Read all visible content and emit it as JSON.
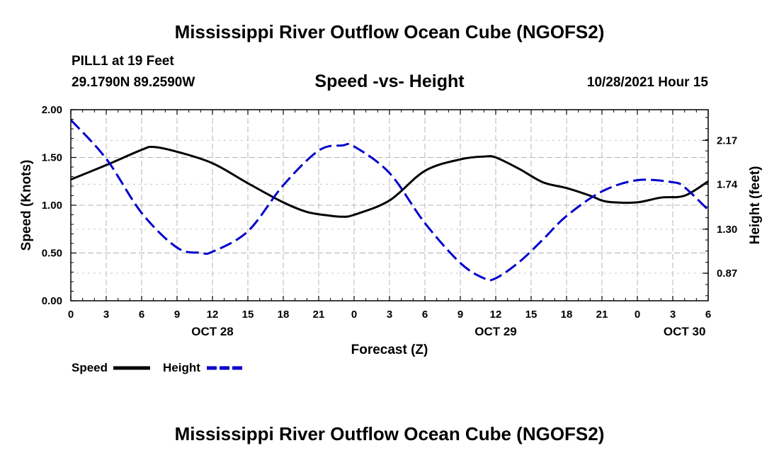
{
  "page": {
    "title": "Mississippi River Outflow Ocean Cube (NGOFS2)",
    "footer_title": "Mississippi River Outflow Ocean Cube (NGOFS2)",
    "station": "PILL1 at 19 Feet",
    "coords": "29.1790N  89.2590W",
    "subtitle": "Speed -vs- Height",
    "datetime": "10/28/2021 Hour 15"
  },
  "chart_data": {
    "type": "line",
    "title": "Speed -vs- Height",
    "xlabel": "Forecast (Z)",
    "ylabel": "Speed (Knots)",
    "y2label": "Height (feet)",
    "x_ticks": [
      "0",
      "3",
      "6",
      "9",
      "12",
      "15",
      "18",
      "21",
      "0",
      "3",
      "6",
      "9",
      "12",
      "15",
      "18",
      "21",
      "0",
      "3",
      "6"
    ],
    "date_labels": [
      {
        "label": "OCT 28",
        "x": 12
      },
      {
        "label": "OCT 29",
        "x": 36
      },
      {
        "label": "OCT 30",
        "x": 52
      }
    ],
    "xlim": [
      0,
      54
    ],
    "ylim": [
      0,
      2.0
    ],
    "y_ticks": [
      "0.00",
      "0.50",
      "1.00",
      "1.50",
      "2.00"
    ],
    "y2lim": [
      0.6,
      2.47
    ],
    "y2_ticks": [
      "0.87",
      "1.30",
      "1.74",
      "2.17"
    ],
    "grid": true,
    "legend": [
      {
        "name": "Speed",
        "color": "#000000",
        "style": "solid"
      },
      {
        "name": "Height",
        "color": "#0000cc",
        "style": "dashed"
      }
    ],
    "series": [
      {
        "name": "Speed",
        "axis": "left",
        "color": "#000000",
        "x": [
          0,
          3,
          6,
          7,
          9,
          12,
          15,
          18,
          20,
          22,
          23,
          24,
          27,
          30,
          33,
          35,
          36,
          38,
          40,
          42,
          44,
          45,
          46,
          48,
          50,
          52,
          54
        ],
        "values": [
          1.27,
          1.42,
          1.58,
          1.61,
          1.56,
          1.44,
          1.23,
          1.03,
          0.93,
          0.89,
          0.88,
          0.9,
          1.05,
          1.36,
          1.48,
          1.51,
          1.5,
          1.38,
          1.24,
          1.18,
          1.1,
          1.05,
          1.03,
          1.03,
          1.08,
          1.1,
          1.25
        ]
      },
      {
        "name": "Height",
        "axis": "right",
        "color": "#0000cc",
        "x": [
          0,
          3,
          6,
          9,
          11,
          12,
          15,
          18,
          21,
          23,
          24,
          27,
          30,
          33,
          35,
          36,
          38,
          40,
          42,
          45,
          48,
          51,
          52,
          54
        ],
        "values": [
          2.37,
          1.99,
          1.46,
          1.12,
          1.07,
          1.08,
          1.28,
          1.73,
          2.07,
          2.12,
          2.11,
          1.85,
          1.36,
          0.97,
          0.82,
          0.82,
          0.98,
          1.2,
          1.43,
          1.67,
          1.78,
          1.76,
          1.71,
          1.49
        ]
      }
    ]
  }
}
